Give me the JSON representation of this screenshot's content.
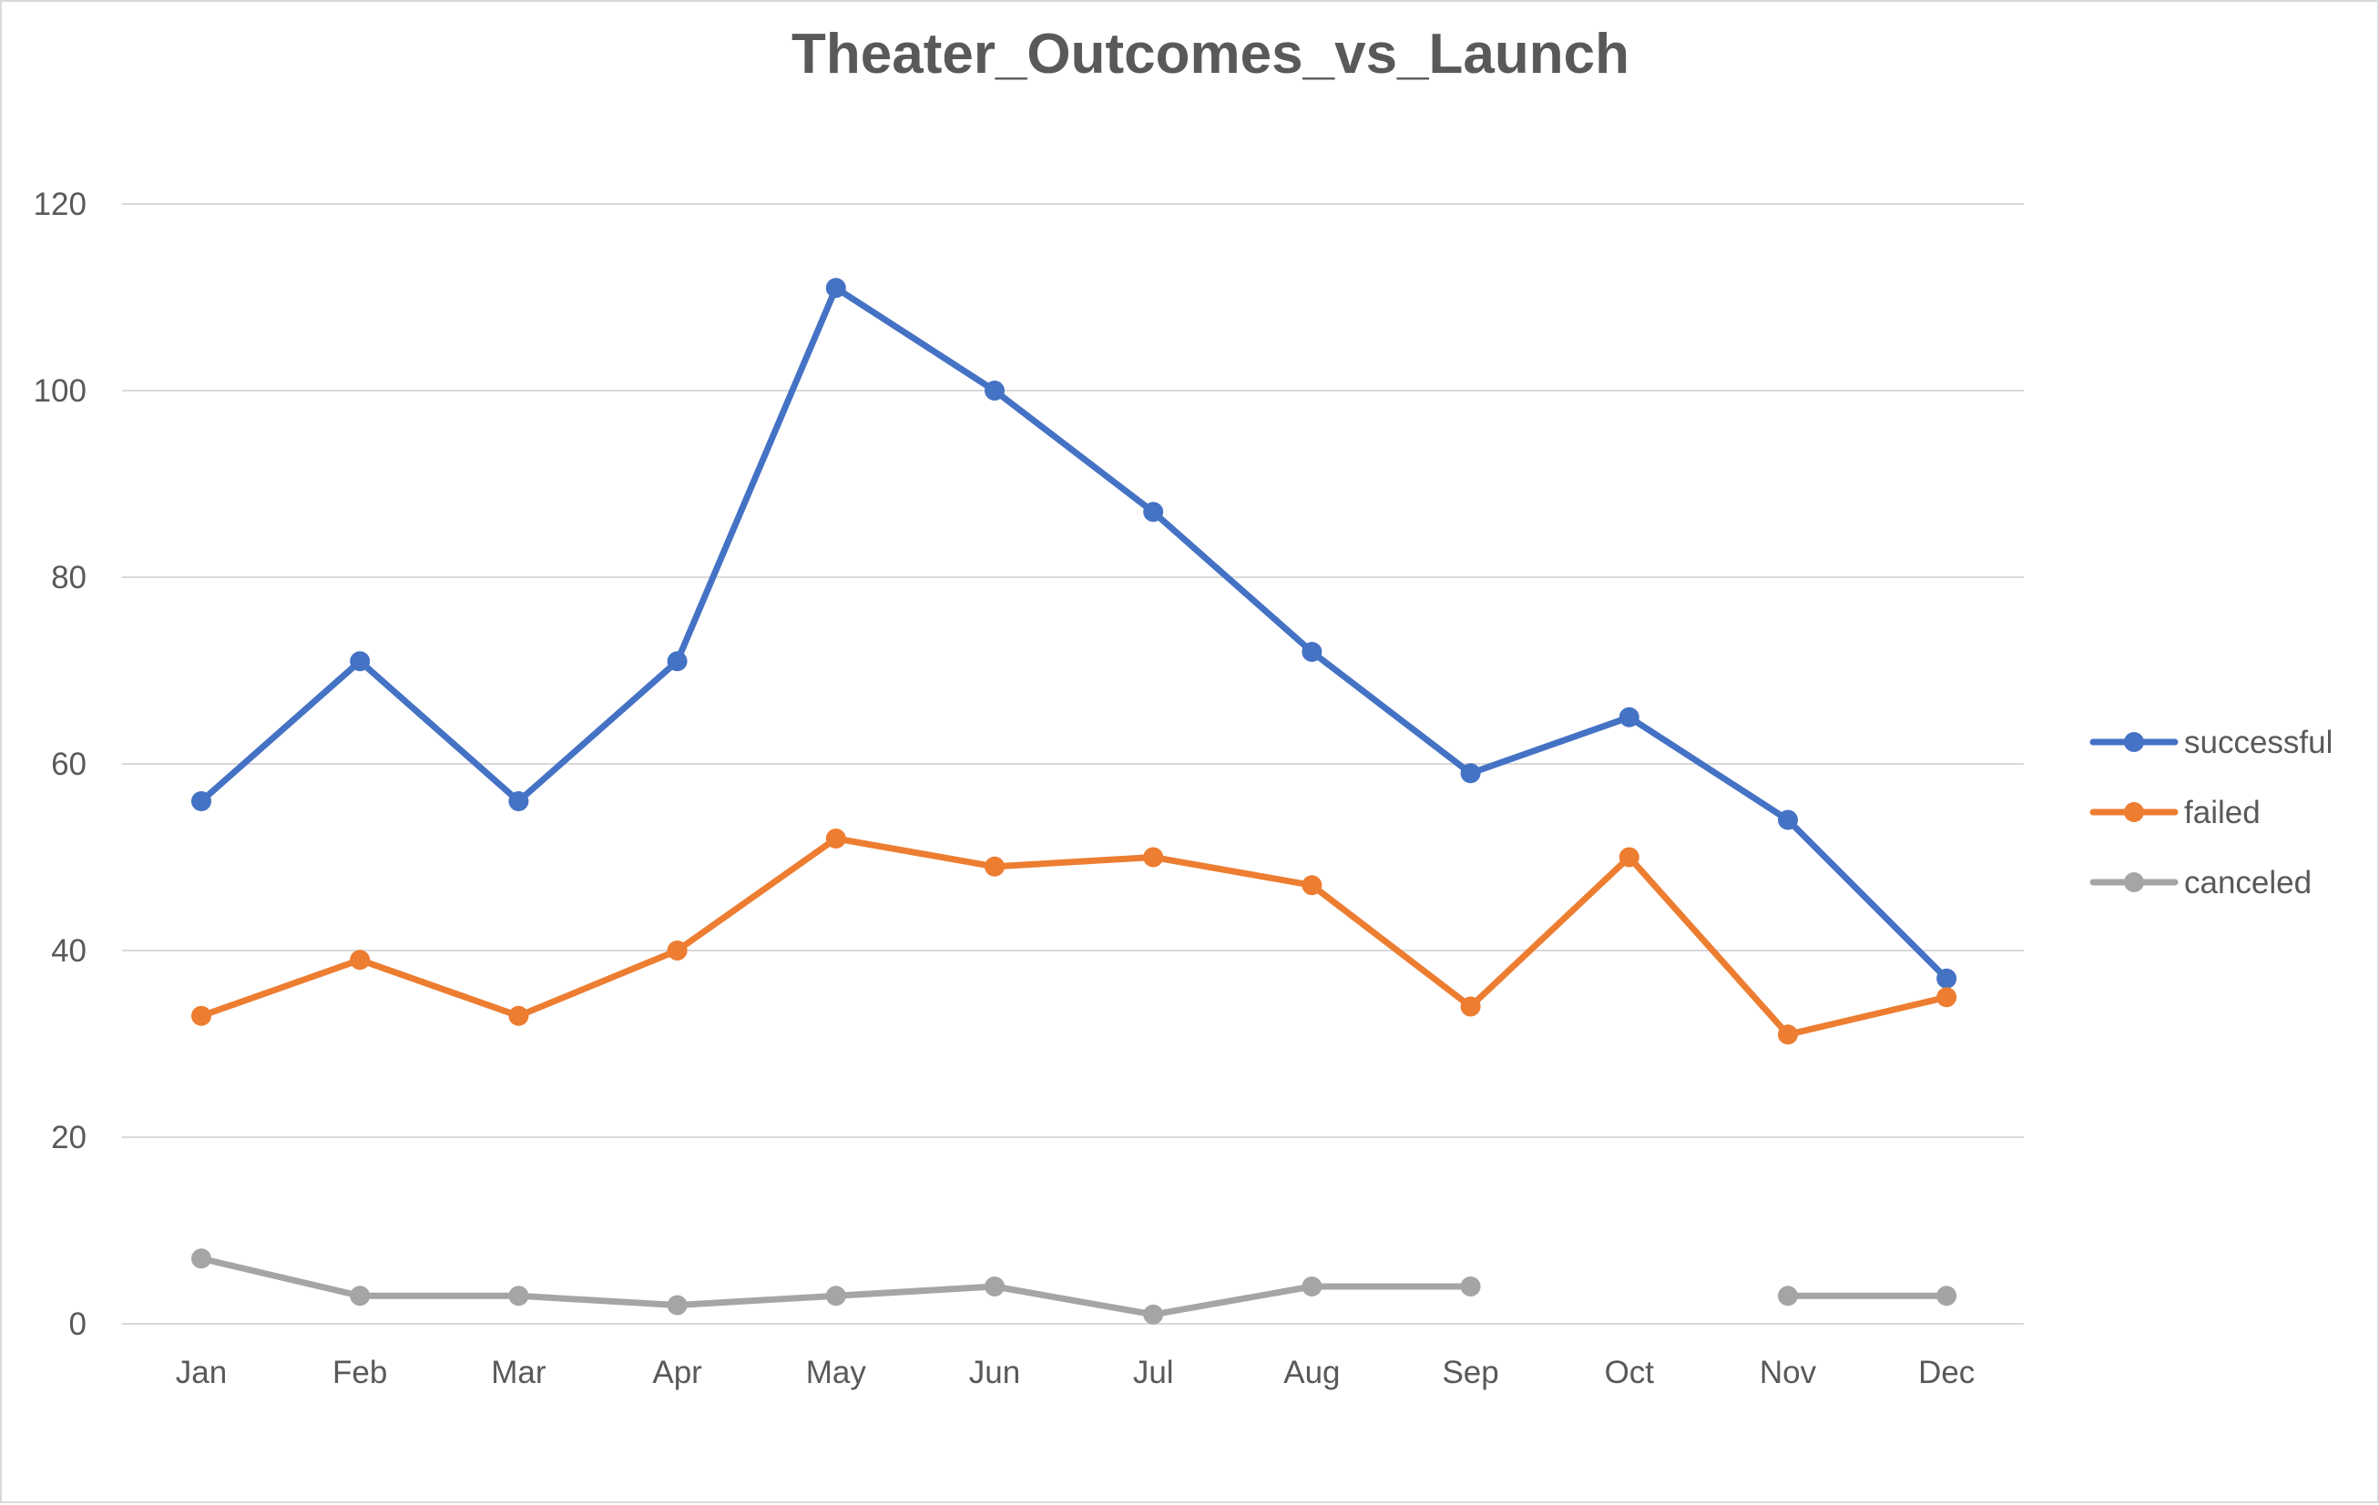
{
  "chart_data": {
    "type": "line",
    "title": "Theater_Outcomes_vs_Launch",
    "xlabel": "",
    "ylabel": "",
    "categories": [
      "Jan",
      "Feb",
      "Mar",
      "Apr",
      "May",
      "Jun",
      "Jul",
      "Aug",
      "Sep",
      "Oct",
      "Nov",
      "Dec"
    ],
    "ylim": [
      0,
      120
    ],
    "yticks": [
      0,
      20,
      40,
      60,
      80,
      100,
      120
    ],
    "grid": true,
    "legend_position": "right",
    "series": [
      {
        "name": "successful",
        "color": "#4472c4",
        "values": [
          56,
          71,
          56,
          71,
          111,
          100,
          87,
          72,
          59,
          65,
          54,
          37
        ]
      },
      {
        "name": "failed",
        "color": "#ed7d31",
        "values": [
          33,
          39,
          33,
          40,
          52,
          49,
          50,
          47,
          34,
          50,
          31,
          35
        ]
      },
      {
        "name": "canceled",
        "color": "#a5a5a5",
        "values": [
          7,
          3,
          3,
          2,
          3,
          4,
          1,
          4,
          4,
          null,
          3,
          3
        ]
      }
    ]
  }
}
